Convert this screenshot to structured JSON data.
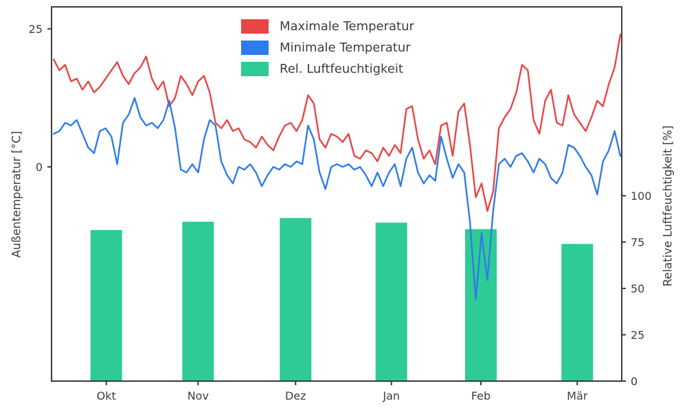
{
  "figure": {
    "background": "#ffffff",
    "text_color": "#3d3d3d",
    "spine_color": "#3a3a3a"
  },
  "chart_data": {
    "type": "mixed",
    "title": "",
    "x_axis": {
      "tick_labels": [
        "Okt",
        "Nov",
        "Dez",
        "Jan",
        "Feb",
        "Mär"
      ],
      "tick_positions": [
        0.096,
        0.257,
        0.428,
        0.596,
        0.753,
        0.922
      ]
    },
    "left_axis": {
      "label": "Außentemperatur [°C]",
      "ticks": [
        0,
        25
      ],
      "ylim": [
        -38.8,
        29
      ]
    },
    "right_axis": {
      "label": "Relative Luftfeuchtigkeit [%]",
      "ticks": [
        0,
        25,
        50,
        75,
        100
      ],
      "ylim": [
        0,
        201.9
      ]
    },
    "legend": {
      "position": "upper center",
      "frame": false
    },
    "series": [
      {
        "name": "Maximale Temperatur",
        "type": "line",
        "axis": "left",
        "color": "#e84545",
        "values": [
          19.5,
          17.5,
          18.5,
          15.5,
          16.0,
          14.0,
          15.5,
          13.5,
          14.5,
          16.0,
          17.5,
          19.0,
          16.5,
          15.0,
          17.0,
          18.0,
          20.0,
          16.0,
          14.0,
          15.5,
          11.0,
          12.5,
          16.5,
          15.0,
          13.0,
          15.5,
          16.5,
          13.5,
          8.0,
          7.0,
          8.5,
          6.5,
          7.0,
          5.0,
          4.5,
          3.5,
          5.5,
          4.0,
          3.0,
          5.5,
          7.5,
          8.0,
          6.5,
          8.5,
          13.0,
          11.5,
          5.0,
          3.5,
          6.0,
          5.5,
          4.5,
          6.0,
          2.0,
          1.5,
          3.0,
          2.5,
          1.0,
          3.5,
          2.0,
          4.0,
          2.5,
          10.5,
          11.0,
          5.0,
          1.5,
          3.0,
          0.5,
          7.5,
          8.0,
          2.0,
          10.0,
          11.5,
          4.0,
          -5.5,
          -3.0,
          -8.0,
          -4.5,
          7.0,
          9.0,
          10.5,
          13.5,
          18.5,
          17.5,
          8.5,
          6.0,
          12.0,
          14.0,
          8.0,
          7.5,
          13.0,
          9.5,
          8.0,
          6.5,
          9.0,
          12.0,
          11.0,
          15.0,
          18.0,
          24.0
        ]
      },
      {
        "name": "Minimale Temperatur",
        "type": "line",
        "axis": "left",
        "color": "#2e7bee",
        "values": [
          6.0,
          6.5,
          8.0,
          7.5,
          8.5,
          6.0,
          3.5,
          2.5,
          6.5,
          7.0,
          5.5,
          0.5,
          8.0,
          9.5,
          12.5,
          9.0,
          7.5,
          8.0,
          7.0,
          8.5,
          12.0,
          7.0,
          -0.5,
          -1.0,
          0.5,
          -1.0,
          5.0,
          8.5,
          7.5,
          1.0,
          -1.5,
          -3.0,
          0.0,
          -0.5,
          0.5,
          -1.0,
          -3.5,
          -1.5,
          0.0,
          -0.5,
          0.5,
          0.0,
          1.0,
          0.5,
          7.5,
          5.0,
          -1.0,
          -4.0,
          0.0,
          0.5,
          0.0,
          0.5,
          -0.5,
          0.0,
          -1.5,
          -3.5,
          -1.0,
          -3.5,
          -1.0,
          0.5,
          -3.5,
          1.5,
          3.5,
          -1.0,
          -3.0,
          -1.5,
          -2.5,
          5.5,
          1.5,
          -2.0,
          0.5,
          -1.0,
          -10.0,
          -24.0,
          -12.0,
          -20.5,
          -8.0,
          0.5,
          1.5,
          0.0,
          2.0,
          2.5,
          1.0,
          -1.0,
          1.5,
          0.5,
          -2.0,
          -3.0,
          -1.0,
          4.0,
          3.5,
          2.0,
          0.0,
          -1.5,
          -5.0,
          1.0,
          3.0,
          6.5,
          2.0
        ]
      },
      {
        "name": "Rel. Luftfeuchtigkeit",
        "type": "bar",
        "axis": "right",
        "color": "#2fcb95",
        "categories": [
          "Okt",
          "Nov",
          "Dez",
          "Jan",
          "Feb",
          "Mär"
        ],
        "values": [
          81.5,
          86,
          88,
          85.5,
          82,
          74
        ]
      }
    ]
  }
}
